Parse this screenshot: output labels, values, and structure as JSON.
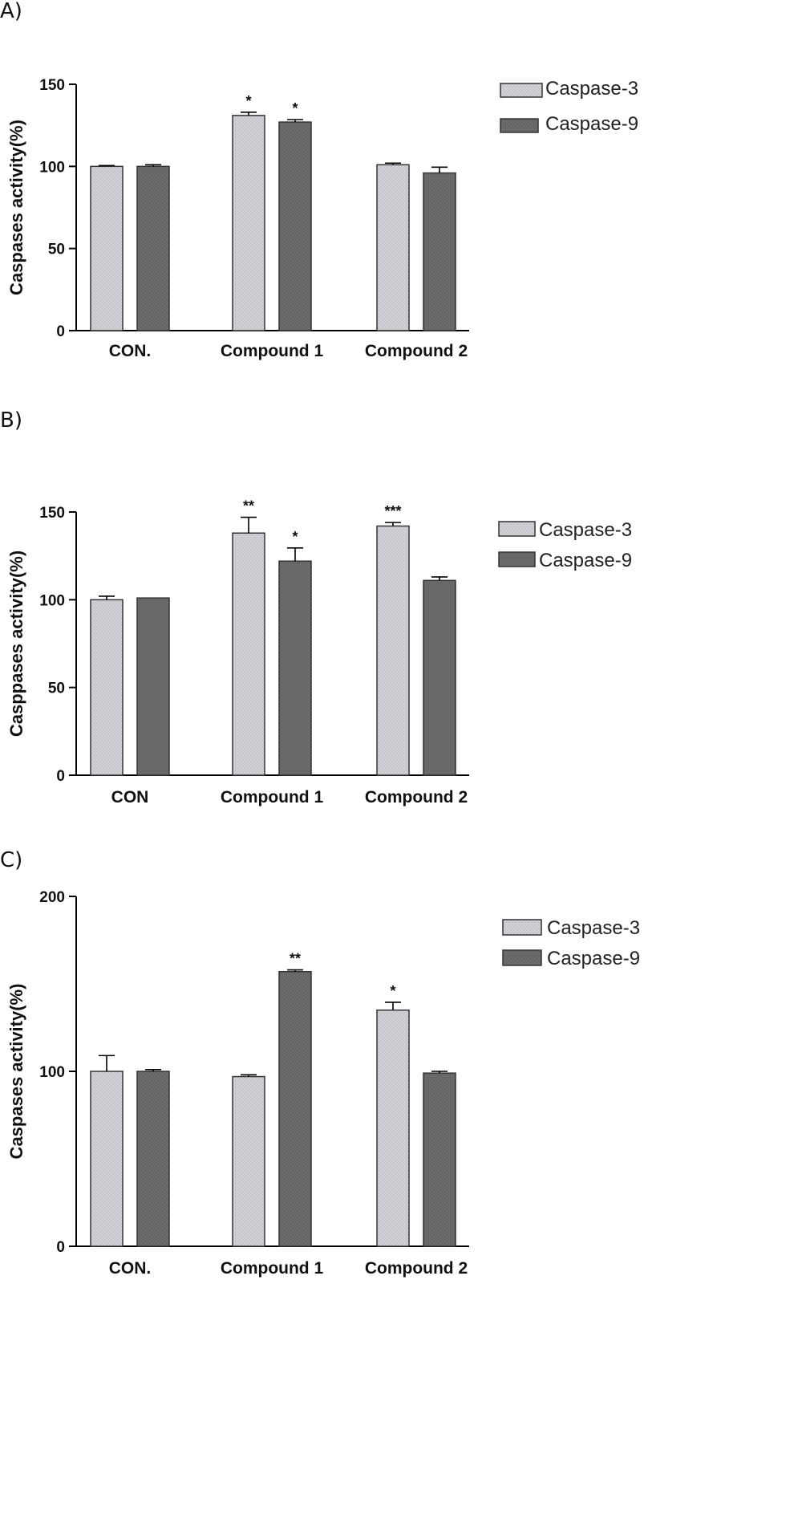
{
  "colors": {
    "caspase3_fill": "#d2d2d8",
    "caspase9_fill": "#6b6e6b"
  },
  "chart_data": [
    {
      "type": "bar",
      "panel_label": "A)",
      "categories": [
        "CON.",
        "Compound 1",
        "Compound 2"
      ],
      "ylabel": "Caspases activity(%)",
      "ylim": [
        0,
        150
      ],
      "yticks": [
        0,
        50,
        100,
        150
      ],
      "legend": "top-right",
      "series": [
        {
          "name": "Caspase-3",
          "values": [
            100,
            131,
            101
          ],
          "errors": [
            0.5,
            2,
            1
          ],
          "significance": [
            "",
            "*",
            ""
          ]
        },
        {
          "name": "Caspase-9",
          "values": [
            100,
            127,
            96
          ],
          "errors": [
            1,
            1.5,
            3.5
          ],
          "significance": [
            "",
            "*",
            ""
          ]
        }
      ]
    },
    {
      "type": "bar",
      "panel_label": "B)",
      "categories": [
        "CON",
        "Compound 1",
        "Compound 2"
      ],
      "ylabel": "Casppases activity(%)",
      "ylim": [
        0,
        150
      ],
      "yticks": [
        0,
        50,
        100,
        150
      ],
      "legend": "top-right",
      "series": [
        {
          "name": "Caspase-3",
          "values": [
            100,
            138,
            142
          ],
          "errors": [
            2,
            9,
            2
          ],
          "significance": [
            "",
            "**",
            "***"
          ]
        },
        {
          "name": "Caspase-9",
          "values": [
            101,
            122,
            111
          ],
          "errors": [
            0,
            7.5,
            2
          ],
          "significance": [
            "",
            "*",
            ""
          ]
        }
      ]
    },
    {
      "type": "bar",
      "panel_label": "C)",
      "categories": [
        "CON.",
        "Compound 1",
        "Compound 2"
      ],
      "ylabel": "Caspases activity(%)",
      "ylim": [
        0,
        200
      ],
      "yticks": [
        0,
        100,
        200
      ],
      "legend": "top-right",
      "series": [
        {
          "name": "Caspase-3",
          "values": [
            100,
            97,
            135
          ],
          "errors": [
            9,
            1,
            4.5
          ],
          "significance": [
            "",
            "",
            "*"
          ]
        },
        {
          "name": "Caspase-9",
          "values": [
            100,
            157,
            99
          ],
          "errors": [
            1,
            1,
            1
          ],
          "significance": [
            "",
            "**",
            ""
          ]
        }
      ]
    }
  ]
}
